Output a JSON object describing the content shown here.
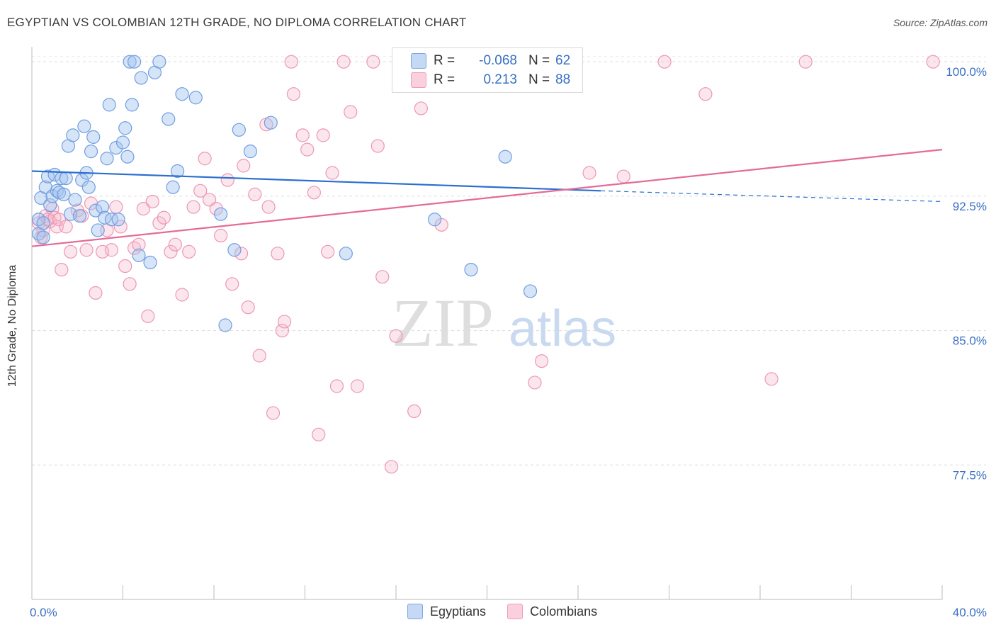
{
  "header": {
    "title": "EGYPTIAN VS COLOMBIAN 12TH GRADE, NO DIPLOMA CORRELATION CHART",
    "source": "Source: ZipAtlas.com"
  },
  "watermark": {
    "part1": "ZIP",
    "part2": "atlas"
  },
  "legend": {
    "rows": [
      {
        "r_label": "R =",
        "r_value": "-0.068",
        "n_label": "N =",
        "n_value": "62",
        "color": "#a9c6ef"
      },
      {
        "r_label": "R =",
        "r_value": "0.213",
        "n_label": "N =",
        "n_value": "88",
        "color": "#f6b8cb"
      }
    ]
  },
  "bottom_legend": {
    "items": [
      "Egyptians",
      "Colombians"
    ]
  },
  "chart_data": {
    "type": "scatter",
    "title": "EGYPTIAN VS COLOMBIAN 12TH GRADE, NO DIPLOMA CORRELATION CHART",
    "xlabel": "",
    "ylabel": "12th Grade, No Diploma",
    "xlim": [
      0,
      40
    ],
    "ylim": [
      70.0,
      100.6
    ],
    "x_tick_labels": [
      "0.0%",
      "40.0%"
    ],
    "y_ticks": [
      77.5,
      85.0,
      92.5,
      100.0
    ],
    "y_tick_labels": [
      "77.5%",
      "85.0%",
      "92.5%",
      "100.0%"
    ],
    "grid": true,
    "colors": {
      "egyptians": "#6fa0e0",
      "colombians": "#ee8fae",
      "egyptians_line": "#2b6fd0",
      "colombians_line": "#e46b97"
    },
    "series": [
      {
        "name": "Egyptians",
        "trend": {
          "x0": 0.0,
          "y0": 93.9,
          "x1": 25.0,
          "y1": 92.8,
          "dash_to_x": 40.0,
          "dash_to_y": 92.2
        },
        "points": [
          [
            0.3,
            91.2
          ],
          [
            0.3,
            90.4
          ],
          [
            0.4,
            92.4
          ],
          [
            0.5,
            91.0
          ],
          [
            0.5,
            90.2
          ],
          [
            0.6,
            93.0
          ],
          [
            0.7,
            93.6
          ],
          [
            0.8,
            92.0
          ],
          [
            0.9,
            92.5
          ],
          [
            1.0,
            93.7
          ],
          [
            1.1,
            92.8
          ],
          [
            1.2,
            92.7
          ],
          [
            1.3,
            93.5
          ],
          [
            1.4,
            92.6
          ],
          [
            1.5,
            93.5
          ],
          [
            1.6,
            95.3
          ],
          [
            1.7,
            91.5
          ],
          [
            1.8,
            95.9
          ],
          [
            1.9,
            92.3
          ],
          [
            2.1,
            91.4
          ],
          [
            2.2,
            93.4
          ],
          [
            2.3,
            96.4
          ],
          [
            2.4,
            93.8
          ],
          [
            2.5,
            93.0
          ],
          [
            2.6,
            95.0
          ],
          [
            2.7,
            95.8
          ],
          [
            2.8,
            91.7
          ],
          [
            2.9,
            90.6
          ],
          [
            3.1,
            91.9
          ],
          [
            3.2,
            91.3
          ],
          [
            3.3,
            94.6
          ],
          [
            3.4,
            97.6
          ],
          [
            3.5,
            91.2
          ],
          [
            3.7,
            95.2
          ],
          [
            3.8,
            91.2
          ],
          [
            4.0,
            95.5
          ],
          [
            4.1,
            96.3
          ],
          [
            4.2,
            94.7
          ],
          [
            4.3,
            100.0
          ],
          [
            4.4,
            97.6
          ],
          [
            4.5,
            100.0
          ],
          [
            4.7,
            89.2
          ],
          [
            4.8,
            99.1
          ],
          [
            5.2,
            88.8
          ],
          [
            5.4,
            99.4
          ],
          [
            5.6,
            100.0
          ],
          [
            6.0,
            96.8
          ],
          [
            6.2,
            93.0
          ],
          [
            6.4,
            93.9
          ],
          [
            6.6,
            98.2
          ],
          [
            7.2,
            98.0
          ],
          [
            8.3,
            91.5
          ],
          [
            8.5,
            85.3
          ],
          [
            8.9,
            89.5
          ],
          [
            9.1,
            96.2
          ],
          [
            9.6,
            95.0
          ],
          [
            10.5,
            96.6
          ],
          [
            13.8,
            89.3
          ],
          [
            17.7,
            91.2
          ],
          [
            19.3,
            88.4
          ],
          [
            20.8,
            94.7
          ],
          [
            21.9,
            87.2
          ]
        ]
      },
      {
        "name": "Colombians",
        "trend": {
          "x0": 0.0,
          "y0": 89.7,
          "x1": 40.0,
          "y1": 95.1
        },
        "points": [
          [
            0.3,
            91.0
          ],
          [
            0.4,
            90.2
          ],
          [
            0.5,
            90.6
          ],
          [
            0.6,
            91.4
          ],
          [
            0.7,
            91.2
          ],
          [
            0.8,
            91.1
          ],
          [
            0.9,
            91.8
          ],
          [
            1.0,
            91.3
          ],
          [
            1.1,
            90.8
          ],
          [
            1.2,
            91.2
          ],
          [
            1.3,
            88.4
          ],
          [
            1.5,
            90.8
          ],
          [
            1.7,
            89.4
          ],
          [
            2.0,
            91.7
          ],
          [
            2.2,
            91.4
          ],
          [
            2.4,
            89.5
          ],
          [
            2.6,
            92.1
          ],
          [
            2.8,
            87.1
          ],
          [
            3.1,
            89.4
          ],
          [
            3.3,
            90.6
          ],
          [
            3.5,
            89.5
          ],
          [
            3.7,
            91.9
          ],
          [
            3.9,
            90.8
          ],
          [
            4.1,
            88.6
          ],
          [
            4.3,
            87.6
          ],
          [
            4.5,
            89.6
          ],
          [
            4.7,
            89.8
          ],
          [
            4.9,
            91.8
          ],
          [
            5.1,
            85.8
          ],
          [
            5.3,
            92.2
          ],
          [
            5.6,
            91.0
          ],
          [
            5.8,
            91.3
          ],
          [
            6.1,
            89.4
          ],
          [
            6.3,
            89.8
          ],
          [
            6.6,
            87.0
          ],
          [
            6.9,
            89.4
          ],
          [
            7.1,
            91.9
          ],
          [
            7.4,
            92.8
          ],
          [
            7.6,
            94.6
          ],
          [
            7.8,
            92.3
          ],
          [
            8.1,
            91.8
          ],
          [
            8.3,
            90.3
          ],
          [
            8.6,
            93.4
          ],
          [
            8.8,
            87.6
          ],
          [
            9.2,
            89.3
          ],
          [
            9.3,
            94.2
          ],
          [
            9.5,
            86.3
          ],
          [
            9.8,
            92.6
          ],
          [
            10.0,
            83.6
          ],
          [
            10.3,
            96.5
          ],
          [
            10.4,
            91.9
          ],
          [
            10.6,
            80.4
          ],
          [
            10.8,
            89.3
          ],
          [
            11.0,
            85.0
          ],
          [
            11.1,
            85.5
          ],
          [
            11.4,
            100.0
          ],
          [
            11.5,
            98.2
          ],
          [
            11.9,
            95.9
          ],
          [
            12.1,
            95.1
          ],
          [
            12.4,
            92.7
          ],
          [
            12.6,
            79.2
          ],
          [
            12.8,
            95.9
          ],
          [
            13.0,
            89.4
          ],
          [
            13.2,
            93.8
          ],
          [
            13.4,
            81.9
          ],
          [
            13.7,
            100.0
          ],
          [
            14.0,
            97.2
          ],
          [
            14.3,
            81.9
          ],
          [
            15.0,
            100.0
          ],
          [
            15.2,
            95.3
          ],
          [
            15.4,
            88.0
          ],
          [
            15.8,
            77.4
          ],
          [
            16.0,
            84.7
          ],
          [
            16.3,
            98.8
          ],
          [
            16.8,
            80.5
          ],
          [
            17.1,
            97.4
          ],
          [
            18.0,
            90.9
          ],
          [
            18.5,
            100.0
          ],
          [
            22.1,
            82.1
          ],
          [
            22.4,
            83.3
          ],
          [
            23.9,
            100.0
          ],
          [
            24.5,
            93.8
          ],
          [
            26.0,
            93.6
          ],
          [
            27.8,
            100.0
          ],
          [
            29.6,
            98.2
          ],
          [
            32.5,
            82.3
          ],
          [
            34.0,
            100.0
          ],
          [
            39.6,
            100.0
          ]
        ]
      }
    ]
  }
}
